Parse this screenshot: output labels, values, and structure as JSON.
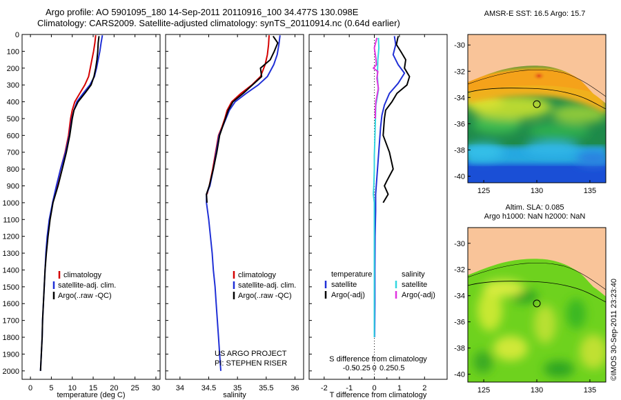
{
  "header": {
    "line1": "Argo profile: AO 5901095_180 14-Sep-2011 20110916_100 34.477S 130.098E",
    "line2": "Climatology: CARS2009. Satellite-adjusted climatology: synTS_20110914.nc (0.64d earlier)"
  },
  "side_label": "©IMOS 30-Sep-2011 23:23:40",
  "colors": {
    "climatology": "#d40000",
    "satellite": "#1f2fd6",
    "argo": "#000000",
    "sal_satellite": "#33d6e0",
    "sal_argo": "#e033e0",
    "land": "#f9c499"
  },
  "chart_data": [
    {
      "type": "line",
      "xlabel": "temperature (deg C)",
      "ylabel": "",
      "xlim": [
        -2,
        31
      ],
      "ylim": [
        2050,
        0
      ],
      "xticks": [
        0,
        5,
        10,
        15,
        20,
        25,
        30
      ],
      "yticks": [
        0,
        100,
        200,
        300,
        400,
        500,
        600,
        700,
        800,
        900,
        1000,
        1100,
        1200,
        1300,
        1400,
        1500,
        1600,
        1700,
        1800,
        1900,
        2000
      ],
      "legend": [
        "climatology",
        "satellite-adj. clim.",
        "Argo(..raw -QC)"
      ],
      "series": [
        {
          "name": "climatology",
          "color": "#d40000",
          "points": [
            [
              15.6,
              5
            ],
            [
              15.4,
              50
            ],
            [
              15.1,
              100
            ],
            [
              14.7,
              150
            ],
            [
              14.3,
              200
            ],
            [
              13.9,
              250
            ],
            [
              13.0,
              300
            ],
            [
              11.8,
              350
            ],
            [
              10.6,
              400
            ],
            [
              10.0,
              450
            ],
            [
              9.6,
              500
            ],
            [
              9.1,
              600
            ],
            [
              8.3,
              700
            ],
            [
              7.2,
              800
            ],
            [
              6.3,
              900
            ],
            [
              5.3,
              1000
            ]
          ]
        },
        {
          "name": "satellite-adj. clim.",
          "color": "#1f2fd6",
          "points": [
            [
              17.2,
              5
            ],
            [
              16.9,
              50
            ],
            [
              16.6,
              100
            ],
            [
              16.2,
              150
            ],
            [
              15.8,
              200
            ],
            [
              15.3,
              250
            ],
            [
              14.2,
              300
            ],
            [
              12.6,
              350
            ],
            [
              11.1,
              400
            ],
            [
              10.4,
              450
            ],
            [
              9.9,
              500
            ],
            [
              9.3,
              600
            ],
            [
              8.4,
              700
            ],
            [
              7.2,
              800
            ],
            [
              6.2,
              900
            ],
            [
              5.3,
              1000
            ],
            [
              4.5,
              1100
            ],
            [
              4.0,
              1200
            ],
            [
              3.7,
              1300
            ],
            [
              3.5,
              1400
            ],
            [
              3.3,
              1500
            ],
            [
              3.1,
              1600
            ],
            [
              2.9,
              1700
            ],
            [
              2.8,
              1800
            ],
            [
              2.6,
              1900
            ],
            [
              2.4,
              2000
            ]
          ]
        },
        {
          "name": "Argo(..raw -QC)",
          "color": "#000000",
          "points": [
            [
              16.4,
              10
            ],
            [
              16.2,
              50
            ],
            [
              16.1,
              100
            ],
            [
              15.9,
              150
            ],
            [
              15.6,
              200
            ],
            [
              15.2,
              250
            ],
            [
              14.5,
              300
            ],
            [
              13.0,
              350
            ],
            [
              11.4,
              400
            ],
            [
              10.4,
              450
            ],
            [
              10.0,
              500
            ],
            [
              9.4,
              600
            ],
            [
              8.6,
              700
            ],
            [
              7.6,
              800
            ],
            [
              6.6,
              900
            ],
            [
              5.4,
              1000
            ],
            [
              4.7,
              1100
            ],
            [
              4.2,
              1200
            ],
            [
              3.8,
              1300
            ],
            [
              3.5,
              1400
            ],
            [
              3.3,
              1500
            ],
            [
              3.1,
              1600
            ],
            [
              2.9,
              1700
            ],
            [
              2.8,
              1800
            ],
            [
              2.6,
              1900
            ],
            [
              2.4,
              2000
            ]
          ]
        }
      ]
    },
    {
      "type": "line",
      "xlabel": "salinity",
      "ylabel": "",
      "xlim": [
        33.75,
        36.15
      ],
      "ylim": [
        2050,
        0
      ],
      "xticks": [
        34,
        34.5,
        35,
        35.5,
        36
      ],
      "yticks": [],
      "legend": [
        "climatology",
        "satellite-adj. clim.",
        "Argo(..raw -QC)"
      ],
      "annotations": [
        "US ARGO PROJECT",
        "PI: STEPHEN RISER"
      ],
      "series": [
        {
          "name": "climatology",
          "color": "#d40000",
          "points": [
            [
              35.55,
              5
            ],
            [
              35.54,
              60
            ],
            [
              35.52,
              120
            ],
            [
              35.48,
              180
            ],
            [
              35.4,
              250
            ],
            [
              35.25,
              300
            ],
            [
              35.06,
              350
            ],
            [
              34.9,
              400
            ],
            [
              34.82,
              450
            ],
            [
              34.78,
              500
            ],
            [
              34.73,
              550
            ],
            [
              34.67,
              600
            ],
            [
              34.62,
              700
            ],
            [
              34.57,
              800
            ],
            [
              34.51,
              900
            ],
            [
              34.47,
              950
            ]
          ]
        },
        {
          "name": "satellite-adj. clim.",
          "color": "#1f2fd6",
          "points": [
            [
              35.74,
              5
            ],
            [
              35.72,
              60
            ],
            [
              35.69,
              120
            ],
            [
              35.63,
              180
            ],
            [
              35.52,
              250
            ],
            [
              35.36,
              300
            ],
            [
              35.15,
              350
            ],
            [
              34.96,
              400
            ],
            [
              34.86,
              450
            ],
            [
              34.8,
              500
            ],
            [
              34.74,
              550
            ],
            [
              34.68,
              600
            ],
            [
              34.63,
              700
            ],
            [
              34.58,
              800
            ],
            [
              34.52,
              900
            ],
            [
              34.46,
              950
            ],
            [
              34.46,
              1000
            ],
            [
              34.5,
              1100
            ],
            [
              34.53,
              1200
            ],
            [
              34.56,
              1300
            ],
            [
              34.58,
              1400
            ],
            [
              34.61,
              1500
            ],
            [
              34.63,
              1600
            ],
            [
              34.65,
              1700
            ],
            [
              34.67,
              1800
            ],
            [
              34.69,
              1900
            ],
            [
              34.71,
              2000
            ]
          ]
        },
        {
          "name": "Argo(..raw -QC)",
          "color": "#000000",
          "points": [
            [
              35.62,
              10
            ],
            [
              35.7,
              50
            ],
            [
              35.64,
              100
            ],
            [
              35.57,
              150
            ],
            [
              35.4,
              200
            ],
            [
              35.42,
              250
            ],
            [
              35.26,
              300
            ],
            [
              35.1,
              350
            ],
            [
              34.92,
              400
            ],
            [
              34.84,
              450
            ],
            [
              34.79,
              500
            ],
            [
              34.74,
              550
            ],
            [
              34.69,
              600
            ],
            [
              34.64,
              700
            ],
            [
              34.58,
              800
            ],
            [
              34.51,
              900
            ],
            [
              34.46,
              950
            ],
            [
              34.47,
              1000
            ]
          ]
        }
      ]
    },
    {
      "type": "line",
      "xlabel": "T difference from climatology",
      "xlabel_top": "S difference from climatology",
      "ylabel": "",
      "xlim": [
        -2.6,
        2.9
      ],
      "ylim": [
        2050,
        0
      ],
      "xticks": [
        -2,
        -1,
        0,
        1,
        2
      ],
      "xtick_labels": [
        "-2",
        "-1",
        "0",
        "1",
        "2"
      ],
      "sticks": [
        -0.5,
        -0.25,
        0,
        0.25,
        0.5
      ],
      "stick_labels": [
        "-0.5",
        "-0.25",
        "0",
        "0.25",
        "0.5"
      ],
      "yticks": [],
      "legend_temperature": {
        "title": "temperature",
        "items": [
          "satellite",
          "Argo(-adj)"
        ]
      },
      "legend_salinity": {
        "title": "salinity",
        "items": [
          "satellite",
          "Argo(-adj)"
        ]
      },
      "series": [
        {
          "name": "satellite",
          "group": "temperature",
          "color": "#1f2fd6",
          "points": [
            [
              0.8,
              10
            ],
            [
              0.85,
              60
            ],
            [
              0.75,
              120
            ],
            [
              0.95,
              180
            ],
            [
              1.2,
              230
            ],
            [
              0.95,
              290
            ],
            [
              0.6,
              350
            ],
            [
              0.4,
              420
            ],
            [
              0.3,
              480
            ],
            [
              0.25,
              550
            ],
            [
              0.2,
              650
            ],
            [
              0.15,
              750
            ],
            [
              0.1,
              850
            ],
            [
              0.05,
              950
            ],
            [
              0.05,
              1050
            ],
            [
              0.03,
              1200
            ],
            [
              0.02,
              1400
            ],
            [
              0.02,
              1600
            ],
            [
              0.01,
              1800
            ]
          ]
        },
        {
          "name": "Argo(-adj)",
          "group": "temperature",
          "color": "#000000",
          "points": [
            [
              0.95,
              10
            ],
            [
              0.88,
              60
            ],
            [
              1.05,
              100
            ],
            [
              1.25,
              150
            ],
            [
              1.2,
              200
            ],
            [
              1.4,
              250
            ],
            [
              1.3,
              300
            ],
            [
              0.9,
              350
            ],
            [
              0.7,
              400
            ],
            [
              0.45,
              450
            ],
            [
              0.4,
              500
            ],
            [
              0.35,
              600
            ],
            [
              0.6,
              700
            ],
            [
              0.75,
              800
            ],
            [
              0.5,
              870
            ],
            [
              0.4,
              900
            ],
            [
              0.55,
              950
            ],
            [
              0.35,
              1000
            ]
          ]
        },
        {
          "name": "satellite",
          "group": "salinity",
          "color": "#33d6e0",
          "points": [
            [
              0.08,
              20
            ],
            [
              0.09,
              80
            ],
            [
              0.07,
              150
            ],
            [
              0.06,
              250
            ],
            [
              0.08,
              330
            ],
            [
              0.03,
              420
            ],
            [
              0.02,
              520
            ],
            [
              0.01,
              620
            ],
            [
              0.0,
              720
            ],
            [
              0.0,
              800
            ],
            [
              -0.01,
              900
            ],
            [
              -0.02,
              950
            ],
            [
              0.0,
              1000
            ],
            [
              0.0,
              1200
            ],
            [
              0.0,
              1500
            ],
            [
              0.0,
              1800
            ]
          ]
        },
        {
          "name": "Argo(-adj)",
          "group": "salinity",
          "color": "#e033e0",
          "points": [
            [
              0.05,
              20
            ],
            [
              0.0,
              80
            ],
            [
              0.03,
              140
            ],
            [
              0.04,
              180
            ],
            [
              -0.02,
              200
            ],
            [
              0.07,
              220
            ],
            [
              0.05,
              260
            ],
            [
              0.08,
              320
            ],
            [
              0.03,
              400
            ],
            [
              0.02,
              450
            ],
            [
              0.02,
              500
            ]
          ]
        }
      ]
    }
  ],
  "maps": [
    {
      "title": "AMSR-E SST: 16.5 Argo: 15.7",
      "xticks": [
        125,
        130,
        135
      ],
      "yticks": [
        -30,
        -32,
        -34,
        -36,
        -38,
        -40
      ],
      "marker": {
        "lon": 130.098,
        "lat": -34.477
      }
    },
    {
      "title_line1": "Altim. SLA: 0.085",
      "title_line2": "Argo h1000: NaN h2000: NaN",
      "xticks": [
        125,
        130,
        135
      ],
      "yticks": [
        -30,
        -32,
        -34,
        -36,
        -38,
        -40
      ],
      "marker": {
        "lon": 130.098,
        "lat": -34.477
      }
    }
  ]
}
